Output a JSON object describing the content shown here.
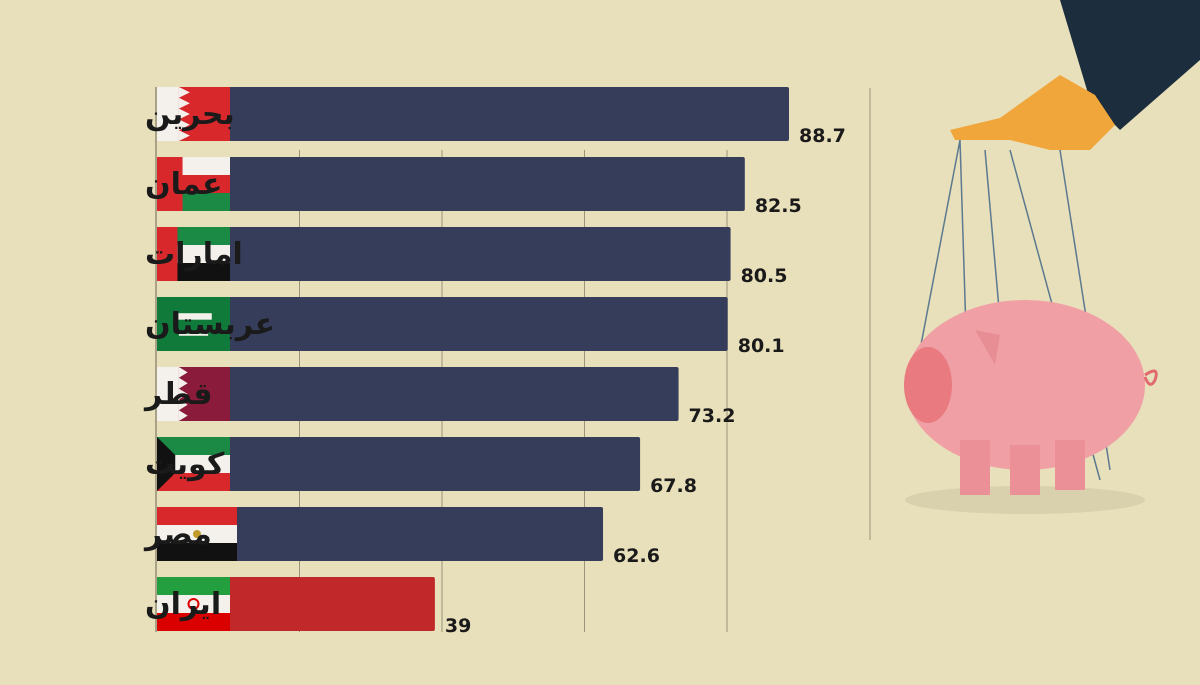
{
  "chart_data": {
    "type": "bar",
    "orientation": "horizontal",
    "categories": [
      "بحرین",
      "عمان",
      "امارات",
      "عربستان",
      "قطر",
      "کویت",
      "مصر",
      "ایران"
    ],
    "values": [
      88.7,
      82.5,
      80.5,
      80.1,
      73.2,
      67.8,
      62.6,
      39
    ],
    "value_labels": [
      "88.7",
      "82.5",
      "80.5",
      "80.1",
      "73.2",
      "67.8",
      "62.6",
      "39"
    ],
    "flags": [
      "bahrain",
      "oman",
      "uae",
      "saudi-arabia",
      "qatar",
      "kuwait",
      "egypt",
      "iran"
    ],
    "xlim": [
      0,
      100
    ],
    "grid": true,
    "gridlines_at": [
      20,
      40,
      60,
      80
    ],
    "colors": {
      "bar": "#353d5a",
      "highlight": "#c0282a",
      "background": "#e8dfbb"
    },
    "highlight_category": "ایران"
  }
}
